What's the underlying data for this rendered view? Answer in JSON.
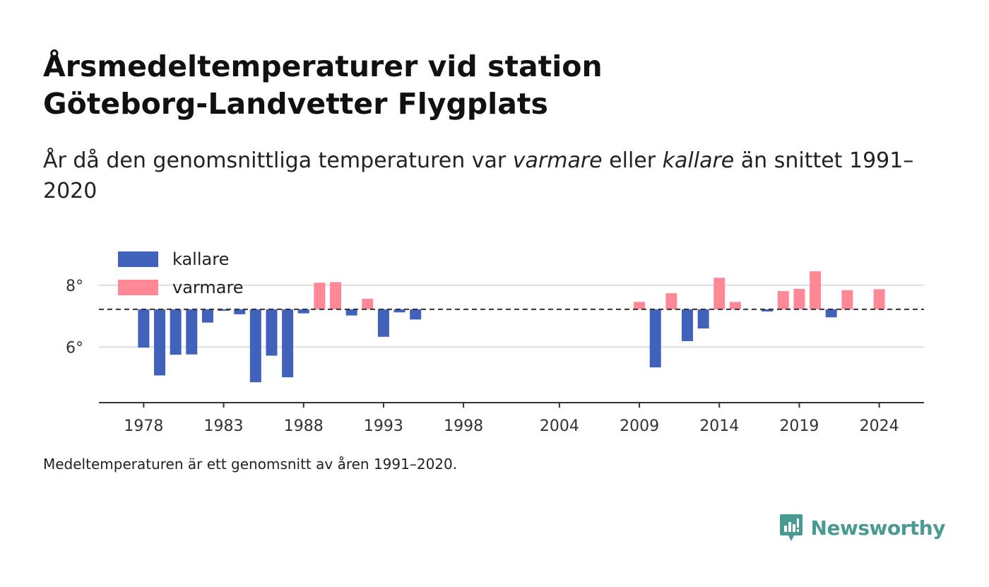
{
  "header": {
    "title_line1": "Årsmedeltemperaturer vid station",
    "title_line2": "Göteborg-Landvetter Flygplats",
    "subtitle_part1": "År då den genomsnittliga temperaturen var ",
    "subtitle_warm": "varmare",
    "subtitle_part2": " eller ",
    "subtitle_cold": "kallare",
    "subtitle_part3": " än snittet 1991–2020"
  },
  "footer": {
    "note": "Medeltemperaturen är ett genomsnitt av åren 1991–2020.",
    "brand": "Newsworthy"
  },
  "colors": {
    "cold": "#4062bb",
    "warm": "#ff8896",
    "brand": "#4a9a94"
  },
  "chart_data": {
    "type": "bar",
    "baseline": 7.22,
    "ylim": [
      4.2,
      9.0
    ],
    "y_ticks": [
      6,
      8
    ],
    "y_tick_labels": [
      "6°",
      "8°"
    ],
    "x_range": [
      1975.2,
      2026.8
    ],
    "x_ticks": [
      1978,
      1983,
      1988,
      1993,
      1998,
      2004,
      2009,
      2014,
      2019,
      2024
    ],
    "x_tick_labels": [
      "1978",
      "1983",
      "1988",
      "1993",
      "1998",
      "2004",
      "2009",
      "2014",
      "2019",
      "2024"
    ],
    "legend": [
      {
        "name": "kallare",
        "key": "cold"
      },
      {
        "name": "varmare",
        "key": "warm"
      }
    ],
    "legend_position": "top-left",
    "grid": true,
    "data": [
      {
        "year": 1978,
        "value": 5.98
      },
      {
        "year": 1979,
        "value": 5.08
      },
      {
        "year": 1980,
        "value": 5.75
      },
      {
        "year": 1981,
        "value": 5.76
      },
      {
        "year": 1982,
        "value": 6.79
      },
      {
        "year": 1983,
        "value": 7.17
      },
      {
        "year": 1984,
        "value": 7.06
      },
      {
        "year": 1985,
        "value": 4.86
      },
      {
        "year": 1986,
        "value": 5.72
      },
      {
        "year": 1987,
        "value": 5.02
      },
      {
        "year": 1988,
        "value": 7.09
      },
      {
        "year": 1989,
        "value": 8.08
      },
      {
        "year": 1990,
        "value": 8.1
      },
      {
        "year": 1991,
        "value": 7.02
      },
      {
        "year": 1992,
        "value": 7.56
      },
      {
        "year": 1993,
        "value": 6.33
      },
      {
        "year": 1994,
        "value": 7.12
      },
      {
        "year": 1995,
        "value": 6.89
      },
      {
        "year": 2009,
        "value": 7.46
      },
      {
        "year": 2010,
        "value": 5.34
      },
      {
        "year": 2011,
        "value": 7.74
      },
      {
        "year": 2012,
        "value": 6.19
      },
      {
        "year": 2013,
        "value": 6.6
      },
      {
        "year": 2014,
        "value": 8.24
      },
      {
        "year": 2015,
        "value": 7.46
      },
      {
        "year": 2017,
        "value": 7.15
      },
      {
        "year": 2018,
        "value": 7.81
      },
      {
        "year": 2019,
        "value": 7.88
      },
      {
        "year": 2020,
        "value": 8.45
      },
      {
        "year": 2021,
        "value": 6.96
      },
      {
        "year": 2022,
        "value": 7.84
      },
      {
        "year": 2024,
        "value": 7.87
      }
    ]
  }
}
